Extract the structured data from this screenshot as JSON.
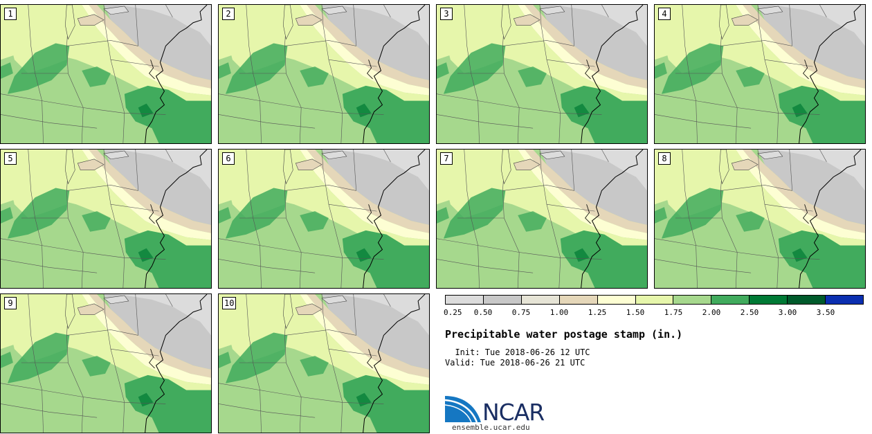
{
  "panels": [
    {
      "label": "1"
    },
    {
      "label": "2"
    },
    {
      "label": "3"
    },
    {
      "label": "4"
    },
    {
      "label": "5"
    },
    {
      "label": "6"
    },
    {
      "label": "7"
    },
    {
      "label": "8"
    },
    {
      "label": "9"
    },
    {
      "label": "10"
    }
  ],
  "colorbar": {
    "colors": [
      "#dcdcdc",
      "#c8c8c8",
      "#e6e4d6",
      "#e5d7b9",
      "#fdfed3",
      "#e6f6ab",
      "#a6d88d",
      "#41ab5d",
      "#007a35",
      "#005a2b",
      "#0b2fb0"
    ],
    "ticks": [
      "0.25",
      "0.50",
      "0.75",
      "1.00",
      "1.25",
      "1.50",
      "1.75",
      "2.00",
      "2.50",
      "3.00",
      "3.50"
    ]
  },
  "title": "Precipitable water postage stamp (in.)",
  "init_line": "  Init: Tue 2018-06-26 12 UTC",
  "valid_line": "Valid: Tue 2018-06-26 21 UTC",
  "logo": {
    "text": "NCAR",
    "site": "ensemble.ucar.edu"
  }
}
